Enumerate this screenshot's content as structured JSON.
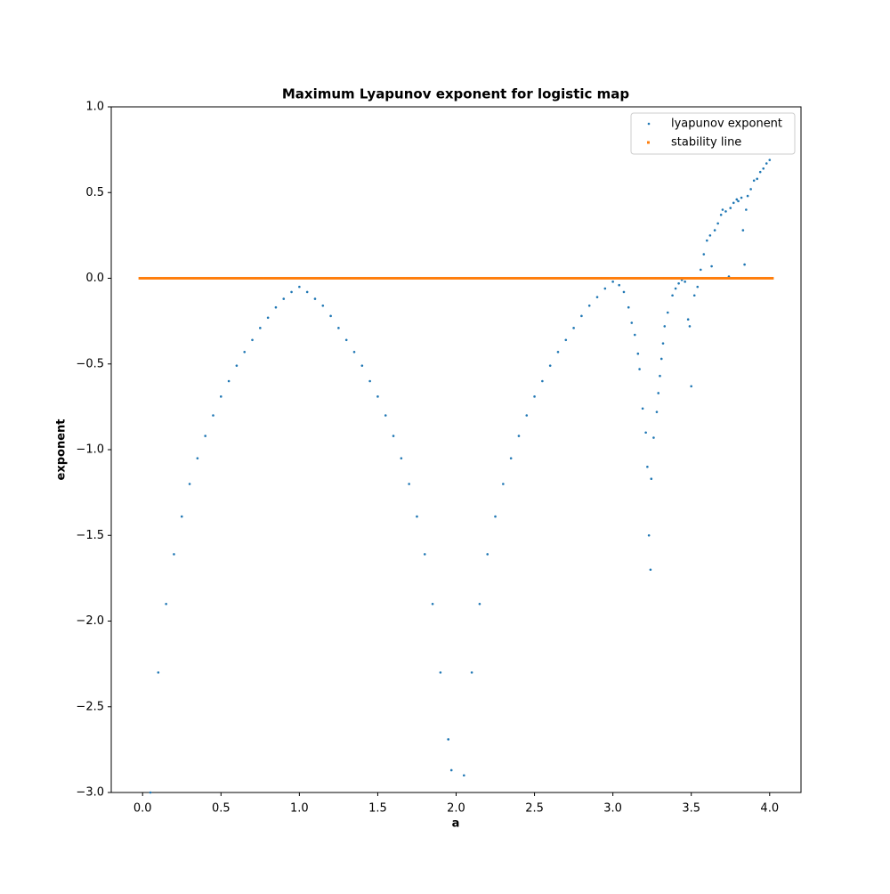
{
  "chart_data": {
    "type": "scatter",
    "title": "Maximum Lyapunov exponent for logistic map",
    "x_label": "a",
    "y_label": "exponent",
    "xlim": [
      -0.2,
      4.2
    ],
    "ylim": [
      -3.0,
      1.0
    ],
    "xticks": [
      {
        "value": 0,
        "label": "0.0"
      },
      {
        "value": 0.5,
        "label": "0.5"
      },
      {
        "value": 1,
        "label": "1.0"
      },
      {
        "value": 1.5,
        "label": "1.5"
      },
      {
        "value": 2,
        "label": "2.0"
      },
      {
        "value": 2.5,
        "label": "2.5"
      },
      {
        "value": 3,
        "label": "3.0"
      },
      {
        "value": 3.5,
        "label": "3.5"
      },
      {
        "value": 4,
        "label": "4.0"
      }
    ],
    "yticks": [
      {
        "value": -3,
        "label": "−3.0"
      },
      {
        "value": -2.5,
        "label": "−2.5"
      },
      {
        "value": -2,
        "label": "−2.0"
      },
      {
        "value": -1.5,
        "label": "−1.5"
      },
      {
        "value": -1,
        "label": "−1.0"
      },
      {
        "value": -0.5,
        "label": "−0.5"
      },
      {
        "value": 0,
        "label": "0.0"
      },
      {
        "value": 0.5,
        "label": "0.5"
      },
      {
        "value": 1,
        "label": "1.0"
      }
    ],
    "legend": "upper right",
    "series": [
      {
        "name": "lyapunov exponent",
        "color": "#1f77b4",
        "x": [
          0.05,
          0.1,
          0.15,
          0.2,
          0.25,
          0.3,
          0.35,
          0.4,
          0.45,
          0.5,
          0.55,
          0.6,
          0.65,
          0.7,
          0.75,
          0.8,
          0.85,
          0.9,
          0.95,
          1.0,
          1.05,
          1.1,
          1.15,
          1.2,
          1.25,
          1.3,
          1.35,
          1.4,
          1.45,
          1.5,
          1.55,
          1.6,
          1.65,
          1.7,
          1.75,
          1.8,
          1.85,
          1.9,
          1.95,
          1.97,
          2.05,
          2.1,
          2.15,
          2.2,
          2.25,
          2.3,
          2.35,
          2.4,
          2.45,
          2.5,
          2.55,
          2.6,
          2.65,
          2.7,
          2.75,
          2.8,
          2.85,
          2.9,
          2.95,
          3.0,
          3.04,
          3.07,
          3.1,
          3.12,
          3.14,
          3.16,
          3.17,
          3.19,
          3.21,
          3.22,
          3.23,
          3.24,
          3.245,
          3.26,
          3.28,
          3.29,
          3.3,
          3.31,
          3.32,
          3.33,
          3.35,
          3.38,
          3.4,
          3.42,
          3.44,
          3.46,
          3.48,
          3.49,
          3.5,
          3.52,
          3.54,
          3.56,
          3.58,
          3.6,
          3.62,
          3.63,
          3.65,
          3.67,
          3.69,
          3.7,
          3.72,
          3.74,
          3.75,
          3.77,
          3.79,
          3.8,
          3.82,
          3.83,
          3.84,
          3.85,
          3.86,
          3.88,
          3.9,
          3.92,
          3.94,
          3.96,
          3.98,
          4.0
        ],
        "values": [
          -3.0,
          -2.3,
          -1.9,
          -1.61,
          -1.39,
          -1.2,
          -1.05,
          -0.92,
          -0.8,
          -0.69,
          -0.6,
          -0.51,
          -0.43,
          -0.36,
          -0.29,
          -0.23,
          -0.17,
          -0.12,
          -0.08,
          -0.05,
          -0.08,
          -0.12,
          -0.16,
          -0.22,
          -0.29,
          -0.36,
          -0.43,
          -0.51,
          -0.6,
          -0.69,
          -0.8,
          -0.92,
          -1.05,
          -1.2,
          -1.39,
          -1.61,
          -1.9,
          -2.3,
          -2.69,
          -2.87,
          -2.9,
          -2.3,
          -1.9,
          -1.61,
          -1.39,
          -1.2,
          -1.05,
          -0.92,
          -0.8,
          -0.69,
          -0.6,
          -0.51,
          -0.43,
          -0.36,
          -0.29,
          -0.22,
          -0.16,
          -0.11,
          -0.06,
          -0.02,
          -0.04,
          -0.08,
          -0.17,
          -0.26,
          -0.33,
          -0.44,
          -0.53,
          -0.76,
          -0.9,
          -1.1,
          -1.5,
          -1.7,
          -1.17,
          -0.93,
          -0.78,
          -0.67,
          -0.57,
          -0.47,
          -0.38,
          -0.28,
          -0.2,
          -0.1,
          -0.06,
          -0.03,
          -0.01,
          -0.02,
          -0.24,
          -0.28,
          -0.63,
          -0.1,
          -0.05,
          0.05,
          0.14,
          0.22,
          0.25,
          0.07,
          0.28,
          0.32,
          0.37,
          0.4,
          0.39,
          0.01,
          0.41,
          0.44,
          0.46,
          0.45,
          0.47,
          0.28,
          0.08,
          0.4,
          0.48,
          0.52,
          0.57,
          0.58,
          0.62,
          0.64,
          0.67,
          0.69
        ]
      },
      {
        "name": "stability line",
        "color": "#ff7f0e",
        "x": [
          0,
          0.05,
          0.1,
          0.15,
          0.2,
          0.25,
          0.3,
          0.35,
          0.4,
          0.45,
          0.5,
          0.55,
          0.6,
          0.65,
          0.7,
          0.75,
          0.8,
          0.85,
          0.9,
          0.95,
          1.0,
          1.05,
          1.1,
          1.15,
          1.2,
          1.25,
          1.3,
          1.35,
          1.4,
          1.45,
          1.5,
          1.55,
          1.6,
          1.65,
          1.7,
          1.75,
          1.8,
          1.85,
          1.9,
          1.95,
          2.0,
          2.05,
          2.1,
          2.15,
          2.2,
          2.25,
          2.3,
          2.35,
          2.4,
          2.45,
          2.5,
          2.55,
          2.6,
          2.65,
          2.7,
          2.75,
          2.8,
          2.85,
          2.9,
          2.95,
          3.0,
          3.05,
          3.1,
          3.15,
          3.2,
          3.25,
          3.3,
          3.35,
          3.4,
          3.45,
          3.5,
          3.55,
          3.6,
          3.65,
          3.7,
          3.75,
          3.8,
          3.85,
          3.9,
          3.95,
          4.0
        ],
        "values": [
          0,
          0,
          0,
          0,
          0,
          0,
          0,
          0,
          0,
          0,
          0,
          0,
          0,
          0,
          0,
          0,
          0,
          0,
          0,
          0,
          0,
          0,
          0,
          0,
          0,
          0,
          0,
          0,
          0,
          0,
          0,
          0,
          0,
          0,
          0,
          0,
          0,
          0,
          0,
          0,
          0,
          0,
          0,
          0,
          0,
          0,
          0,
          0,
          0,
          0,
          0,
          0,
          0,
          0,
          0,
          0,
          0,
          0,
          0,
          0,
          0,
          0,
          0,
          0,
          0,
          0,
          0,
          0,
          0,
          0,
          0,
          0,
          0,
          0,
          0,
          0,
          0,
          0,
          0,
          0,
          0
        ]
      }
    ]
  }
}
